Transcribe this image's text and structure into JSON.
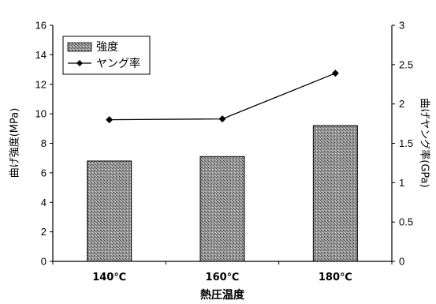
{
  "chart_data": {
    "type": "bar",
    "categories": [
      "140℃",
      "160℃",
      "180℃"
    ],
    "series": [
      {
        "name": "強度",
        "type": "bar",
        "axis": "left",
        "values": [
          6.8,
          7.1,
          9.2
        ],
        "color": "#8c8c8c"
      },
      {
        "name": "ヤング率",
        "type": "line",
        "axis": "right",
        "values": [
          1.8,
          1.81,
          2.39
        ],
        "color": "#000000"
      }
    ],
    "xlabel": "熱圧温度",
    "ylabel": "曲げ強度(MPa)",
    "y2label": "曲げヤング率(GPa)",
    "ylim": [
      0,
      16
    ],
    "y2lim": [
      0,
      3
    ],
    "yticks": [
      "0",
      "2",
      "4",
      "6",
      "8",
      "10",
      "12",
      "14",
      "16"
    ],
    "y2ticks": [
      "0",
      "0.5",
      "1",
      "1.5",
      "2",
      "2.5",
      "3"
    ],
    "grid": false,
    "legend": "top-left"
  }
}
